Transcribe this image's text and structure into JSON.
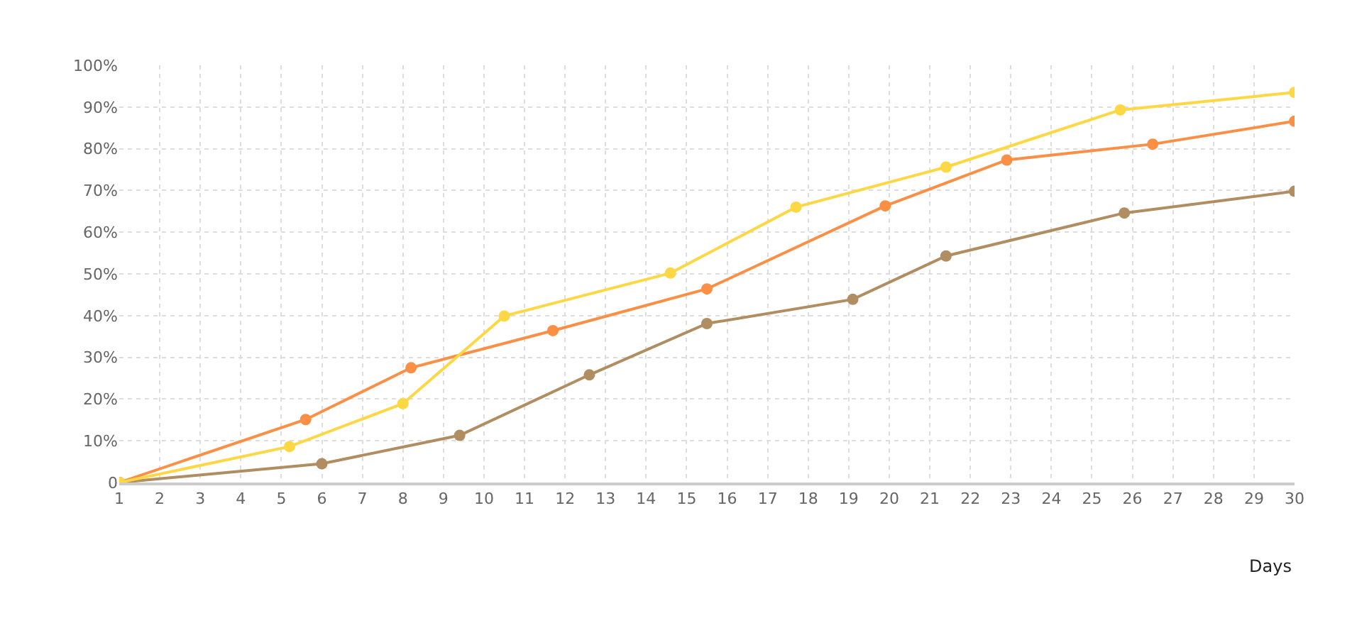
{
  "chart_data": {
    "type": "line",
    "xlabel": "Days",
    "xlim": [
      1,
      30
    ],
    "xticks": [
      1,
      2,
      3,
      4,
      5,
      6,
      7,
      8,
      9,
      10,
      11,
      12,
      13,
      14,
      15,
      16,
      17,
      18,
      19,
      20,
      21,
      22,
      23,
      24,
      25,
      26,
      27,
      28,
      29,
      30
    ],
    "ylim": [
      0,
      100
    ],
    "yticks": [
      0,
      {
        "value": 10,
        "label": "10%"
      },
      {
        "value": 20,
        "label": "20%"
      },
      {
        "value": 30,
        "label": "30%"
      },
      {
        "value": 40,
        "label": "40%"
      },
      {
        "value": 50,
        "label": "50%"
      },
      {
        "value": 60,
        "label": "60%"
      },
      {
        "value": 70,
        "label": "70%"
      },
      {
        "value": 80,
        "label": "80%"
      },
      {
        "value": 90,
        "label": "90%"
      },
      {
        "value": 100,
        "label": "100%"
      }
    ],
    "grid": true,
    "marker": "circle",
    "line_style": "solid",
    "series": [
      {
        "color": "#b08e62",
        "x": [
          1,
          6.0,
          9.4,
          12.6,
          15.5,
          19.1,
          21.4,
          25.8,
          30
        ],
        "values": [
          0,
          4.5,
          11.3,
          25.8,
          38.1,
          43.9,
          54.3,
          64.6,
          69.8
        ]
      },
      {
        "color": "#fb8f45",
        "x": [
          1,
          5.6,
          8.2,
          11.7,
          15.5,
          19.9,
          22.9,
          26.5,
          30
        ],
        "values": [
          0,
          15.1,
          27.5,
          36.4,
          46.4,
          66.3,
          77.3,
          81.1,
          86.6
        ]
      },
      {
        "color": "#fdd844",
        "x": [
          1,
          5.2,
          8.0,
          10.5,
          14.6,
          17.7,
          21.4,
          25.7,
          30
        ],
        "values": [
          0,
          8.6,
          18.9,
          39.9,
          50.2,
          66.0,
          75.6,
          89.3,
          93.5
        ]
      }
    ]
  }
}
